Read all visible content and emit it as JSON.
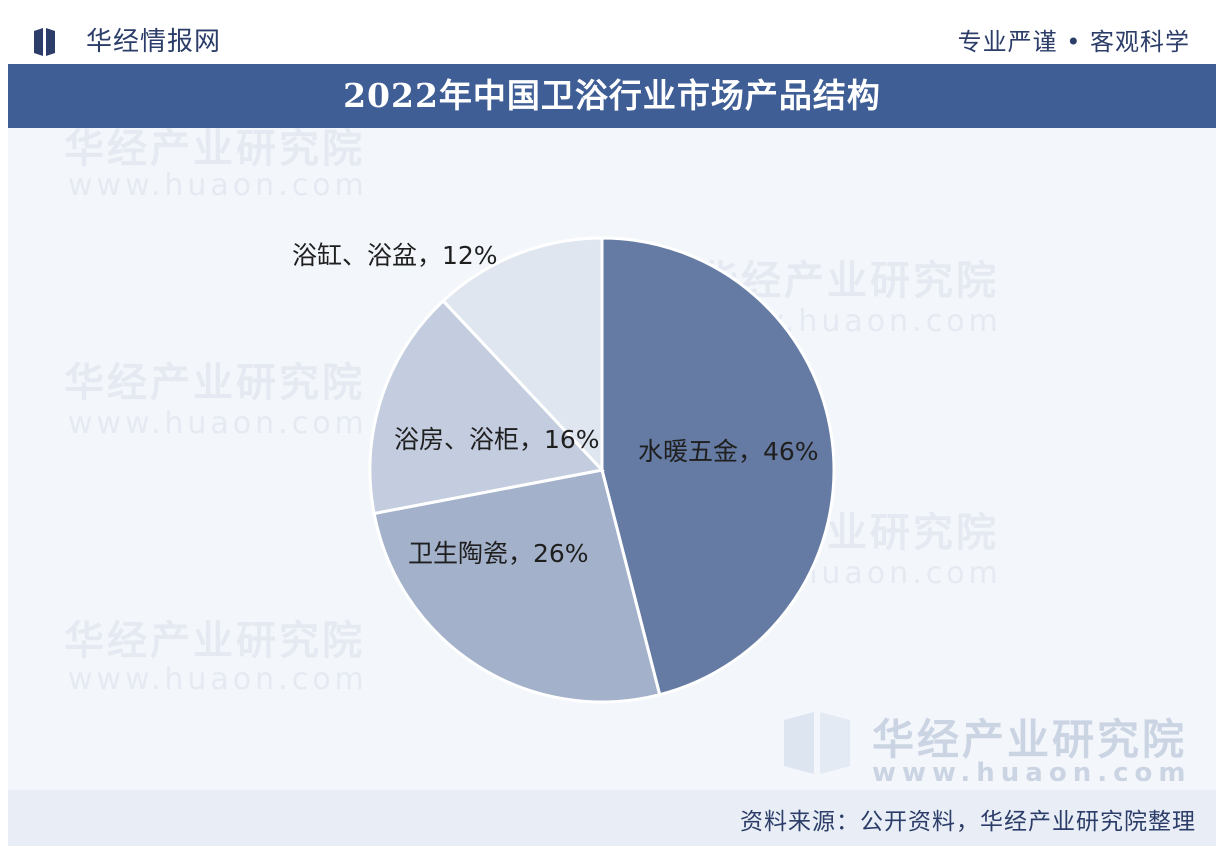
{
  "header": {
    "brand": "华经情报网",
    "slogan": "专业严谨 • 客观科学"
  },
  "watermark": {
    "name": "华经产业研究院",
    "url": "www.huaon.com"
  },
  "footer": {
    "source": "资料来源：公开资料，华经产业研究院整理"
  },
  "colors": {
    "title_bar": "#3f5e95",
    "brand_text": "#2b3d68"
  },
  "chart_data": {
    "type": "pie",
    "title": "2022年中国卫浴行业市场产品结构",
    "start_angle_deg": 0,
    "direction": "clockwise",
    "slices": [
      {
        "label": "水暖五金，46%",
        "category": "水暖五金",
        "value": 46,
        "color": "#657ba3"
      },
      {
        "label": "卫生陶瓷，26%",
        "category": "卫生陶瓷",
        "value": 26,
        "color": "#a3b1cb"
      },
      {
        "label": "浴房、浴柜，16%",
        "category": "浴房、浴柜",
        "value": 16,
        "color": "#c3cddf"
      },
      {
        "label": "浴缸、浴盆，12%",
        "category": "浴缸、浴盆",
        "value": 12,
        "color": "#e0e6f0"
      }
    ]
  }
}
